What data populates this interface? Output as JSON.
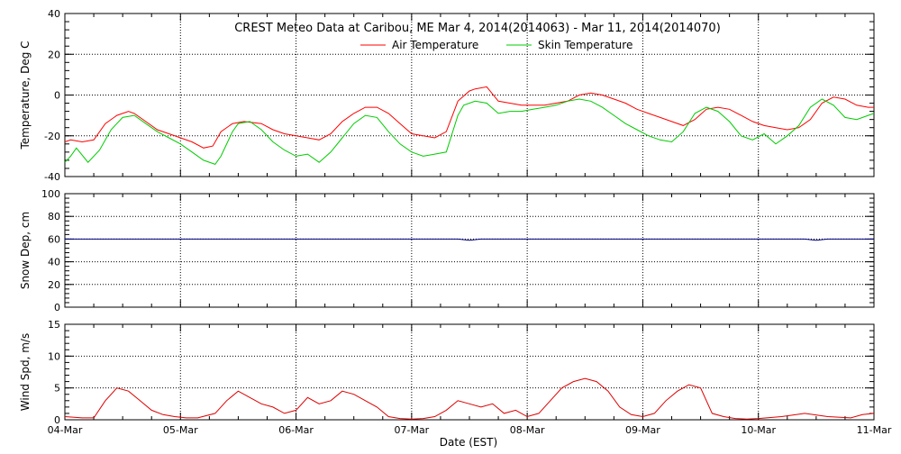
{
  "chart_data": {
    "title": "CREST Meteo Data at Caribou, ME   Mar  4, 2014(2014063) - Mar 11, 2014(2014070)",
    "xlabel": "Date (EST)",
    "x_ticks": [
      "04-Mar",
      "05-Mar",
      "06-Mar",
      "07-Mar",
      "08-Mar",
      "09-Mar",
      "10-Mar",
      "11-Mar"
    ],
    "x_range_days": [
      0,
      7
    ],
    "panels": [
      {
        "type": "line",
        "ylabel": "Temperature, Deg C",
        "ylim": [
          -40,
          40
        ],
        "yticks": [
          -40,
          -20,
          0,
          20,
          40
        ],
        "grid": true,
        "legend": "top-center",
        "series": [
          {
            "name": "Air Temperature",
            "color": "#ff0000",
            "x": [
              0,
              0.05,
              0.15,
              0.25,
              0.35,
              0.45,
              0.5,
              0.55,
              0.6,
              0.7,
              0.8,
              0.9,
              1.0,
              1.1,
              1.2,
              1.28,
              1.35,
              1.45,
              1.55,
              1.7,
              1.8,
              1.9,
              2.0,
              2.1,
              2.2,
              2.3,
              2.4,
              2.5,
              2.6,
              2.7,
              2.8,
              2.9,
              3.0,
              3.1,
              3.2,
              3.3,
              3.4,
              3.5,
              3.55,
              3.65,
              3.75,
              3.85,
              3.95,
              4.05,
              4.15,
              4.25,
              4.35,
              4.45,
              4.55,
              4.65,
              4.75,
              4.85,
              4.95,
              5.05,
              5.15,
              5.25,
              5.35,
              5.45,
              5.55,
              5.65,
              5.75,
              5.85,
              5.95,
              6.05,
              6.15,
              6.25,
              6.35,
              6.45,
              6.55,
              6.65,
              6.75,
              6.85,
              6.95,
              7.0
            ],
            "y": [
              -23,
              -22,
              -23,
              -22,
              -14,
              -10,
              -9,
              -8,
              -9,
              -13,
              -17,
              -19,
              -21,
              -23,
              -26,
              -25,
              -18,
              -14,
              -13,
              -14,
              -17,
              -19,
              -20,
              -21,
              -22,
              -19,
              -13,
              -9,
              -6,
              -6,
              -9,
              -14,
              -19,
              -20,
              -21,
              -18,
              -3,
              2,
              3,
              4,
              -3,
              -4,
              -5,
              -5,
              -5,
              -4,
              -3,
              0,
              1,
              0,
              -2,
              -4,
              -7,
              -9,
              -11,
              -13,
              -15,
              -12,
              -7,
              -6,
              -7,
              -10,
              -13,
              -15,
              -16,
              -17,
              -16,
              -12,
              -4,
              -1,
              -2,
              -5,
              -6,
              -6
            ]
          },
          {
            "name": "Skin Temperature",
            "color": "#00cc00",
            "x": [
              0,
              0.05,
              0.1,
              0.2,
              0.3,
              0.4,
              0.5,
              0.6,
              0.7,
              0.8,
              0.9,
              1.0,
              1.1,
              1.2,
              1.3,
              1.35,
              1.45,
              1.5,
              1.6,
              1.7,
              1.8,
              1.9,
              2.0,
              2.1,
              2.2,
              2.3,
              2.4,
              2.5,
              2.6,
              2.7,
              2.8,
              2.9,
              3.0,
              3.1,
              3.2,
              3.3,
              3.4,
              3.45,
              3.55,
              3.65,
              3.75,
              3.85,
              3.95,
              4.05,
              4.15,
              4.25,
              4.35,
              4.45,
              4.55,
              4.65,
              4.75,
              4.85,
              4.95,
              5.05,
              5.15,
              5.25,
              5.35,
              5.45,
              5.55,
              5.65,
              5.75,
              5.85,
              5.95,
              6.05,
              6.15,
              6.25,
              6.35,
              6.45,
              6.55,
              6.65,
              6.75,
              6.85,
              6.95,
              7.0
            ],
            "y": [
              -33,
              -30,
              -26,
              -33,
              -27,
              -17,
              -11,
              -10,
              -14,
              -18,
              -21,
              -24,
              -28,
              -32,
              -34,
              -30,
              -18,
              -14,
              -13,
              -17,
              -23,
              -27,
              -30,
              -29,
              -33,
              -28,
              -21,
              -14,
              -10,
              -11,
              -18,
              -24,
              -28,
              -30,
              -29,
              -28,
              -10,
              -5,
              -3,
              -4,
              -9,
              -8,
              -8,
              -7,
              -6,
              -5,
              -3,
              -2,
              -3,
              -6,
              -10,
              -14,
              -17,
              -20,
              -22,
              -23,
              -18,
              -9,
              -6,
              -8,
              -13,
              -20,
              -22,
              -19,
              -24,
              -20,
              -15,
              -6,
              -2,
              -5,
              -11,
              -12,
              -10,
              -9
            ]
          }
        ]
      },
      {
        "type": "line",
        "ylabel": "Snow Dep, cm",
        "ylim": [
          0,
          100
        ],
        "yticks": [
          0,
          20,
          40,
          60,
          80,
          100
        ],
        "grid": true,
        "series": [
          {
            "color": "#000080",
            "x": [
              0,
              0.5,
              1.0,
              1.5,
              2.0,
              2.5,
              3.0,
              3.4,
              3.5,
              3.6,
              4.0,
              4.5,
              5.0,
              5.5,
              6.0,
              6.4,
              6.5,
              6.6,
              7.0
            ],
            "y": [
              60,
              60,
              60,
              60,
              60,
              60,
              60,
              60,
              59,
              60,
              60,
              60,
              60,
              60,
              60,
              60,
              59,
              60,
              60
            ]
          }
        ]
      },
      {
        "type": "line",
        "ylabel": "Wind Spd, m/s",
        "ylim": [
          0,
          15
        ],
        "yticks": [
          0,
          5,
          10,
          15
        ],
        "grid": true,
        "series": [
          {
            "color": "#dd0000",
            "x": [
              0,
              0.15,
              0.25,
              0.35,
              0.45,
              0.55,
              0.65,
              0.75,
              0.85,
              0.95,
              1.05,
              1.15,
              1.3,
              1.4,
              1.5,
              1.6,
              1.7,
              1.8,
              1.9,
              2.0,
              2.1,
              2.2,
              2.3,
              2.4,
              2.5,
              2.6,
              2.7,
              2.8,
              2.9,
              3.0,
              3.1,
              3.2,
              3.3,
              3.4,
              3.5,
              3.6,
              3.7,
              3.8,
              3.9,
              4.0,
              4.1,
              4.2,
              4.3,
              4.4,
              4.5,
              4.6,
              4.7,
              4.8,
              4.9,
              5.0,
              5.1,
              5.2,
              5.3,
              5.4,
              5.5,
              5.6,
              5.7,
              5.8,
              5.9,
              6.0,
              6.2,
              6.4,
              6.6,
              6.8,
              6.9,
              7.0
            ],
            "y": [
              0.5,
              0.3,
              0.3,
              3,
              5,
              4.5,
              3,
              1.5,
              0.8,
              0.5,
              0.3,
              0.3,
              1,
              3,
              4.5,
              3.5,
              2.5,
              2,
              1,
              1.5,
              3.5,
              2.5,
              3,
              4.5,
              4,
              3,
              2,
              0.5,
              0.2,
              0.1,
              0.2,
              0.5,
              1.5,
              3,
              2.5,
              2,
              2.5,
              1,
              1.5,
              0.5,
              1,
              3,
              5,
              6,
              6.5,
              6,
              4.5,
              2,
              0.8,
              0.5,
              1,
              3,
              4.5,
              5.5,
              5,
              1,
              0.5,
              0.2,
              0.1,
              0.2,
              0.5,
              1,
              0.5,
              0.3,
              0.8,
              1
            ]
          }
        ]
      }
    ]
  }
}
